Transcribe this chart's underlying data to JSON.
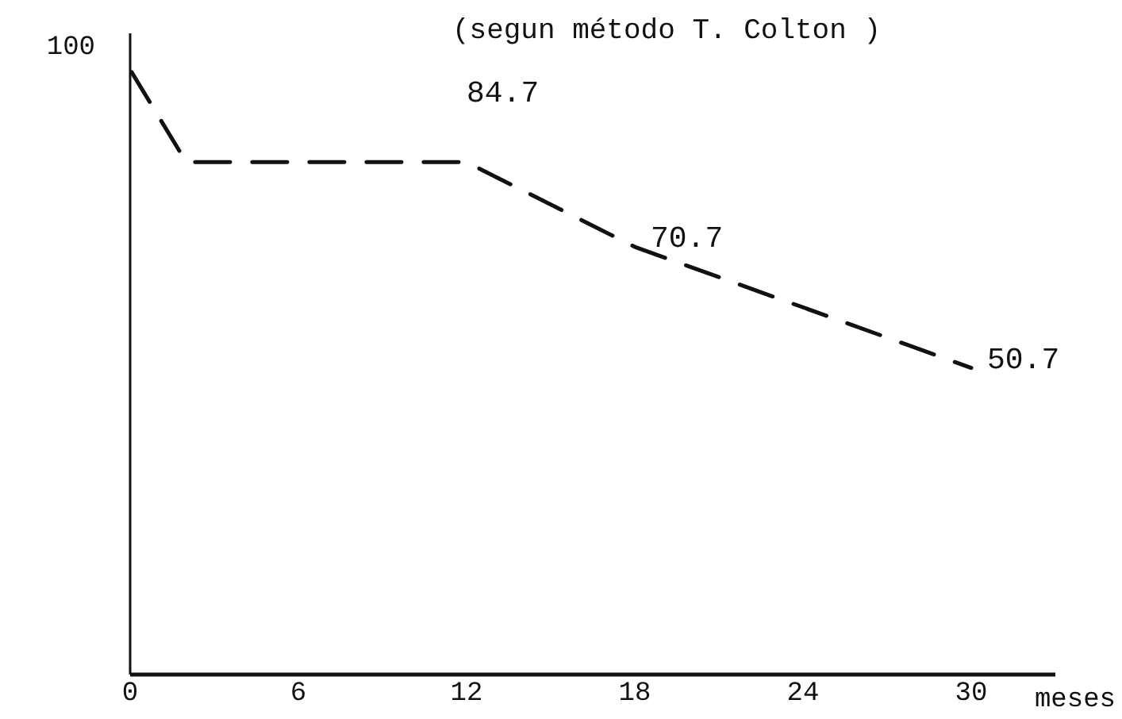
{
  "chart_data": {
    "type": "line",
    "title": "(segun método T. Colton )",
    "xlabel": "meses",
    "annotations": [
      {
        "text": "100",
        "x": 0,
        "y": 100
      }
    ],
    "x": [
      0,
      2,
      12,
      18,
      30
    ],
    "series": [
      {
        "color": "#111111",
        "values": [
          100,
          84.7,
          84.7,
          70.7,
          50.7
        ],
        "value_labels": [
          null,
          null,
          "84.7",
          "70.7",
          "50.7"
        ]
      }
    ],
    "xlim": [
      0,
      33
    ],
    "xticks": [
      0,
      6,
      12,
      18,
      24,
      30
    ],
    "grid": false,
    "marker": "none",
    "line_style": "dashed"
  }
}
